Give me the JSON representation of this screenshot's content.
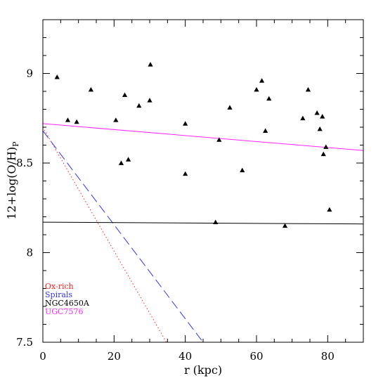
{
  "chart_data": {
    "type": "scatter",
    "xlabel": "r (kpc)",
    "ylabel": "12+log(O/H)",
    "ylabel_subscript": "P",
    "xlim": [
      0,
      90
    ],
    "ylim": [
      7.5,
      9.3
    ],
    "xticks": [
      0,
      20,
      40,
      60,
      80
    ],
    "yticks": [
      7.5,
      8,
      8.5,
      9
    ],
    "ytick_labels": [
      "7.5",
      "8",
      "8.5",
      "9"
    ],
    "points": [
      {
        "x": 4,
        "y": 8.98
      },
      {
        "x": 7,
        "y": 8.74
      },
      {
        "x": 9.5,
        "y": 8.73
      },
      {
        "x": 13.5,
        "y": 8.91
      },
      {
        "x": 20.5,
        "y": 8.74
      },
      {
        "x": 22,
        "y": 8.5
      },
      {
        "x": 23,
        "y": 8.88
      },
      {
        "x": 24,
        "y": 8.52
      },
      {
        "x": 27,
        "y": 8.82
      },
      {
        "x": 30,
        "y": 8.85
      },
      {
        "x": 30.2,
        "y": 9.05
      },
      {
        "x": 40,
        "y": 8.72
      },
      {
        "x": 40,
        "y": 8.44
      },
      {
        "x": 48.5,
        "y": 8.17
      },
      {
        "x": 49.5,
        "y": 8.63
      },
      {
        "x": 52.5,
        "y": 8.81
      },
      {
        "x": 56,
        "y": 8.46
      },
      {
        "x": 60,
        "y": 8.91
      },
      {
        "x": 61.5,
        "y": 8.96
      },
      {
        "x": 62.5,
        "y": 8.68
      },
      {
        "x": 63.5,
        "y": 8.86
      },
      {
        "x": 68,
        "y": 8.15
      },
      {
        "x": 73,
        "y": 8.75
      },
      {
        "x": 74.5,
        "y": 8.91
      },
      {
        "x": 77,
        "y": 8.78
      },
      {
        "x": 77.8,
        "y": 8.69
      },
      {
        "x": 78.5,
        "y": 8.76
      },
      {
        "x": 78.8,
        "y": 8.55
      },
      {
        "x": 79.5,
        "y": 8.59
      },
      {
        "x": 80.5,
        "y": 8.24
      }
    ],
    "series": [
      {
        "name": "Ox-rich",
        "color": "#ff2020",
        "style": "dotted",
        "line": [
          [
            0,
            8.7
          ],
          [
            34.7,
            7.5
          ]
        ]
      },
      {
        "name": "Spirals",
        "color": "#3333ee",
        "style": "dashed",
        "line": [
          [
            0,
            8.68
          ],
          [
            45,
            7.5
          ]
        ]
      },
      {
        "name": "NGC4650A",
        "color": "#000000",
        "style": "solid",
        "line": [
          [
            0,
            8.17
          ],
          [
            90,
            8.16
          ]
        ]
      },
      {
        "name": "UGC7576",
        "color": "#ff22ff",
        "style": "solid",
        "line": [
          [
            0,
            8.72
          ],
          [
            90,
            8.57
          ]
        ]
      }
    ]
  }
}
